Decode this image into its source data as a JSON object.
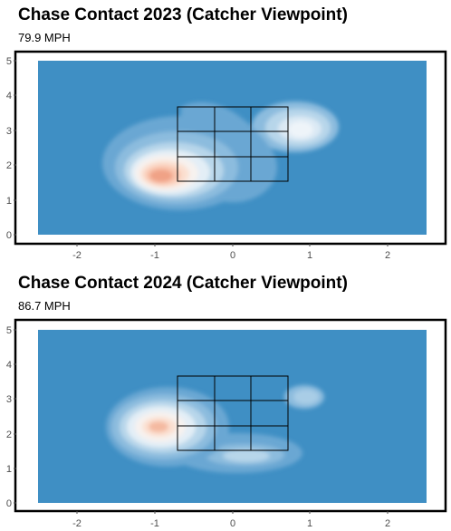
{
  "charts": [
    {
      "title": "Chase Contact 2023 (Catcher Viewpoint)",
      "subtitle": "79.9 MPH"
    },
    {
      "title": "Chase Contact 2024 (Catcher Viewpoint)",
      "subtitle": "86.7 MPH"
    }
  ],
  "chart_data": [
    {
      "type": "heatmap",
      "title": "Chase Contact 2023 (Catcher Viewpoint)",
      "subtitle": "79.9 MPH",
      "xlabel": "",
      "ylabel": "",
      "xlim": [
        -2.5,
        2.5
      ],
      "ylim": [
        0,
        5
      ],
      "x_ticks": [
        "-2",
        "-1",
        "0",
        "1",
        "2"
      ],
      "y_ticks": [
        "0",
        "1",
        "2",
        "3",
        "4",
        "5"
      ],
      "strike_zone": {
        "x": [
          -0.71,
          0.71
        ],
        "y": [
          1.5,
          3.7
        ],
        "rows": 3,
        "cols": 3
      },
      "density_peaks": [
        {
          "x": -0.95,
          "y": 1.7,
          "level": "high"
        },
        {
          "x": 0.85,
          "y": 3.05,
          "level": "low"
        }
      ],
      "colors": {
        "low": "#3f8fc4",
        "mid": "#f7f7f7",
        "high": "#f0a286"
      },
      "grid": false
    },
    {
      "type": "heatmap",
      "title": "Chase Contact 2024 (Catcher Viewpoint)",
      "subtitle": "86.7 MPH",
      "xlabel": "",
      "ylabel": "",
      "xlim": [
        -2.5,
        2.5
      ],
      "ylim": [
        0,
        5
      ],
      "x_ticks": [
        "-2",
        "-1",
        "0",
        "1",
        "2"
      ],
      "y_ticks": [
        "0",
        "1",
        "2",
        "3",
        "4",
        "5"
      ],
      "strike_zone": {
        "x": [
          -0.71,
          0.71
        ],
        "y": [
          1.5,
          3.7
        ],
        "rows": 3,
        "cols": 3
      },
      "density_peaks": [
        {
          "x": -0.95,
          "y": 2.2,
          "level": "high"
        },
        {
          "x": 0.95,
          "y": 3.25,
          "level": "low"
        }
      ],
      "colors": {
        "low": "#3f8fc4",
        "mid": "#f7f7f7",
        "high": "#f4b9a0"
      },
      "grid": false
    }
  ]
}
